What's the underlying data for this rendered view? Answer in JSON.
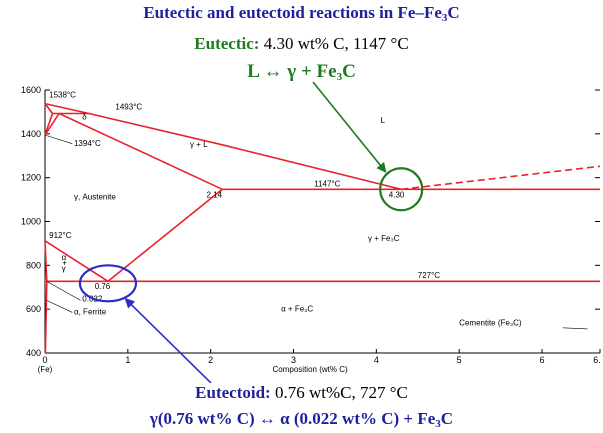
{
  "header": {
    "title_main": "Eutectic and eutectoid reactions in Fe",
    "title_dash": "–",
    "title_fe": "Fe",
    "title_sub": "3",
    "title_c": "C",
    "eutectic_label": "Eutectic:",
    "eutectic_values": "4.30 wt% C, 1147 °C",
    "eutectic_rxn_left": "L ↔ γ + Fe",
    "eutectic_rxn_sub": "3",
    "eutectic_rxn_c": "C"
  },
  "footer": {
    "eutectoid_label": "Eutectoid:",
    "eutectoid_values": "0.76 wt%C, 727 °C",
    "eutectoid_rxn": "γ(0.76 wt% C) ↔ α (0.022 wt% C) + Fe",
    "eutectoid_rxn_sub": "3",
    "eutectoid_rxn_c": "C"
  },
  "colors": {
    "title_blue": "#1f1f9c",
    "eutectic_green": "#1e7b1e",
    "phase_red": "#e8232b",
    "axis_black": "#000000"
  },
  "chart_data": {
    "type": "phase-diagram",
    "xlabel": "Composition (wt% C)",
    "xlim": [
      0,
      6.7
    ],
    "ylim": [
      400,
      1600
    ],
    "x_ticks": [
      "0",
      "1",
      "2",
      "3",
      "4",
      "5",
      "6",
      "6."
    ],
    "y_ticks": [
      "400",
      "600",
      "800",
      "1000",
      "1200",
      "1400",
      "1600"
    ],
    "x_origin_label": "(Fe)",
    "phase_lines": [
      {
        "name": "liquidus-left",
        "points": [
          [
            0,
            1538
          ],
          [
            0.53,
            1493
          ],
          [
            2.14,
            1350
          ],
          [
            4.3,
            1147
          ]
        ]
      },
      {
        "name": "liquidus-right",
        "points": [
          [
            4.3,
            1147
          ],
          [
            6.7,
            1252
          ]
        ],
        "dashed": true
      },
      {
        "name": "peritectic",
        "points": [
          [
            0.09,
            1493
          ],
          [
            0.53,
            1493
          ]
        ]
      },
      {
        "name": "delta-solidus",
        "points": [
          [
            0,
            1538
          ],
          [
            0.09,
            1493
          ]
        ]
      },
      {
        "name": "gamma-solidus",
        "points": [
          [
            0.17,
            1493
          ],
          [
            2.14,
            1147
          ]
        ]
      },
      {
        "name": "delta-gamma-left",
        "points": [
          [
            0,
            1394
          ],
          [
            0.09,
            1493
          ]
        ]
      },
      {
        "name": "delta-gamma-right",
        "points": [
          [
            0,
            1394
          ],
          [
            0.17,
            1493
          ]
        ]
      },
      {
        "name": "eutectic-isotherm",
        "points": [
          [
            2.14,
            1147
          ],
          [
            6.7,
            1147
          ]
        ]
      },
      {
        "name": "acm",
        "points": [
          [
            2.14,
            1147
          ],
          [
            0.76,
            727
          ]
        ]
      },
      {
        "name": "a3",
        "points": [
          [
            0,
            912
          ],
          [
            0.76,
            727
          ]
        ]
      },
      {
        "name": "alpha-gamma",
        "points": [
          [
            0,
            912
          ],
          [
            0.022,
            727
          ]
        ]
      },
      {
        "name": "eutectoid-isotherm",
        "points": [
          [
            0.022,
            727
          ],
          [
            6.7,
            727
          ]
        ]
      },
      {
        "name": "alpha-solvus",
        "points": [
          [
            0.022,
            727
          ],
          [
            0.005,
            400
          ]
        ]
      }
    ],
    "annotations": [
      {
        "text": "1538°C",
        "x": 0.05,
        "y": 1565
      },
      {
        "text": "1493°C",
        "x": 0.85,
        "y": 1510
      },
      {
        "text": "δ",
        "x": 0.45,
        "y": 1465
      },
      {
        "text": "1394°C",
        "x": 0.35,
        "y": 1345
      },
      {
        "text": "γ + L",
        "x": 1.75,
        "y": 1340
      },
      {
        "text": "L",
        "x": 4.05,
        "y": 1450
      },
      {
        "text": "1147°C",
        "x": 3.25,
        "y": 1160
      },
      {
        "text": "2.14",
        "x": 1.95,
        "y": 1110
      },
      {
        "text": "4.30",
        "x": 4.15,
        "y": 1110
      },
      {
        "text": "γ, Austenite",
        "x": 0.35,
        "y": 1100
      },
      {
        "text": "912°C",
        "x": 0.05,
        "y": 925
      },
      {
        "text": "γ + Fe₃C",
        "x": 3.9,
        "y": 910
      },
      {
        "text": "727°C",
        "x": 4.5,
        "y": 742
      },
      {
        "text": "α",
        "x": 0.2,
        "y": 825
      },
      {
        "text": "+",
        "x": 0.21,
        "y": 800
      },
      {
        "text": "γ",
        "x": 0.2,
        "y": 775
      },
      {
        "text": "0.76",
        "x": 0.6,
        "y": 692
      },
      {
        "text": "0.022",
        "x": 0.45,
        "y": 635
      },
      {
        "text": "α, Ferrite",
        "x": 0.35,
        "y": 575
      },
      {
        "text": "α + Fe₃C",
        "x": 2.85,
        "y": 590
      },
      {
        "text": "Cementite (Fe₃C)",
        "x": 5.0,
        "y": 525
      }
    ],
    "highlights": [
      {
        "name": "eutectic-circle",
        "x": 4.3,
        "y": 1147,
        "color": "#1e7b1e"
      },
      {
        "name": "eutectoid-circle",
        "x": 0.76,
        "y": 727,
        "color": "#2d2dc8"
      }
    ]
  }
}
